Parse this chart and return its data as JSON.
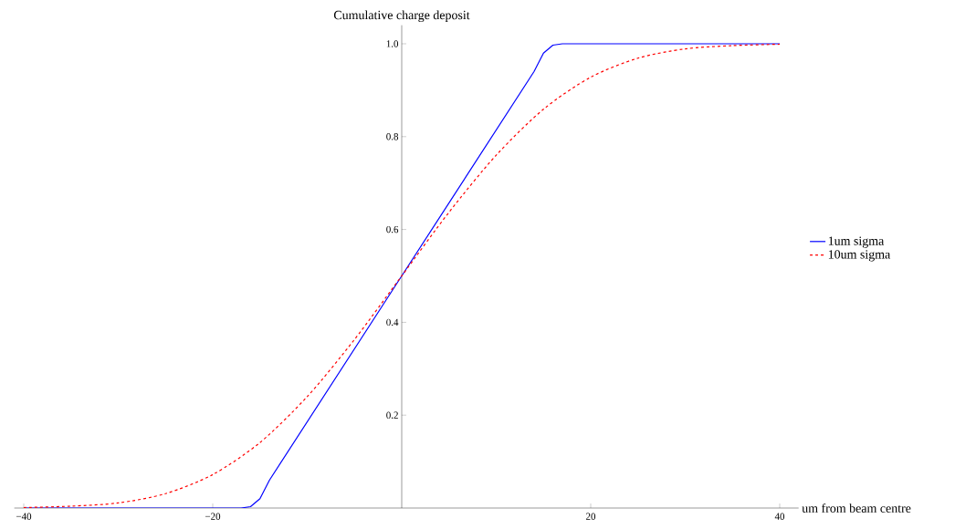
{
  "chart_data": {
    "type": "line",
    "ylabel": "Cumulative charge deposit",
    "xlabel": "um from beam centre",
    "xlim": [
      -41,
      42
    ],
    "ylim": [
      0,
      1.04
    ],
    "xticks": [
      {
        "value": -40,
        "label": "−40"
      },
      {
        "value": -20,
        "label": "−20"
      },
      20,
      40
    ],
    "yticks": [
      0.2,
      0.4,
      0.6,
      0.8,
      {
        "value": 1.0,
        "label": "1.0"
      }
    ],
    "legend": "right",
    "grid": false,
    "marker": "none",
    "series": [
      {
        "name": "1um sigma",
        "color": "#0000ff",
        "line_style": "solid",
        "x": [
          -40,
          -17,
          -16,
          -15,
          -14,
          0,
          14,
          15,
          16,
          17,
          40
        ],
        "values": [
          0,
          0,
          0.003,
          0.02,
          0.06,
          0.5,
          0.94,
          0.98,
          0.997,
          1,
          1
        ]
      },
      {
        "name": "10um sigma",
        "color": "#ff0000",
        "line_style": "dashed",
        "x": [
          -40,
          -35,
          -30,
          -25,
          -20,
          -15,
          -10,
          -5,
          0,
          5,
          10,
          15,
          20,
          25,
          30,
          35,
          40
        ],
        "values": [
          0.001,
          0.004,
          0.011,
          0.031,
          0.072,
          0.141,
          0.24,
          0.363,
          0.5,
          0.637,
          0.76,
          0.859,
          0.928,
          0.969,
          0.989,
          0.996,
          0.999
        ]
      }
    ]
  }
}
